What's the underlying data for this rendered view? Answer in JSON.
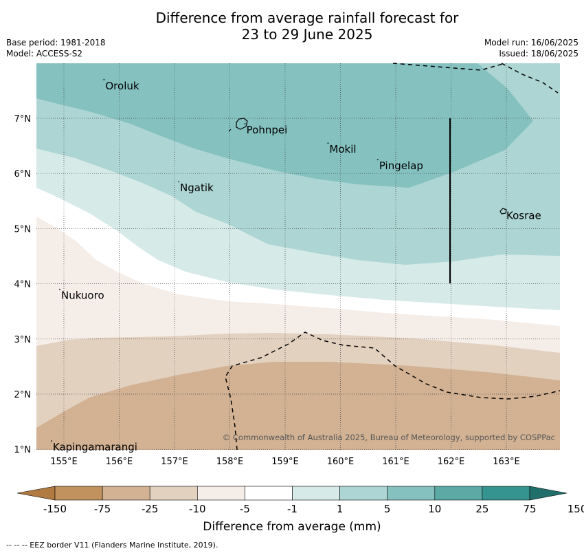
{
  "title_line1": "Difference from average rainfall forecast for",
  "title_line2": "23 to 29 June 2025",
  "base_period": "Base period: 1981-2018",
  "model": "Model: ACCESS-S2",
  "model_run": "Model run: 16/06/2025",
  "issued": "Issued: 18/06/2025",
  "copyright": "© Commonwealth of Australia 2025, Bureau of Meteorology, supported by COSPPac",
  "axes": {
    "lon_ticks": [
      "155°E",
      "156°E",
      "157°E",
      "158°E",
      "159°E",
      "160°E",
      "161°E",
      "162°E",
      "163°E"
    ],
    "lat_ticks": [
      "7°N",
      "6°N",
      "5°N",
      "4°N",
      "3°N",
      "2°N",
      "1°N"
    ]
  },
  "places": [
    {
      "name": "Oroluk",
      "lon": 155.75,
      "lat": 7.65
    },
    {
      "name": "Pohnpei",
      "lon": 158.3,
      "lat": 6.85
    },
    {
      "name": "Mokil",
      "lon": 159.8,
      "lat": 6.5
    },
    {
      "name": "Pingelap",
      "lon": 160.7,
      "lat": 6.2
    },
    {
      "name": "Ngatik",
      "lon": 157.1,
      "lat": 5.8
    },
    {
      "name": "Kosrae",
      "lon": 163.0,
      "lat": 5.3
    },
    {
      "name": "Nukuoro",
      "lon": 154.95,
      "lat": 3.85
    },
    {
      "name": "Kapingamarangi",
      "lon": 154.8,
      "lat": 1.1
    }
  ],
  "colorbar": {
    "labels": [
      "-150",
      "-75",
      "-25",
      "-10",
      "-5",
      "-1",
      "1",
      "5",
      "10",
      "25",
      "75",
      "150"
    ],
    "colors": [
      "#b07a40",
      "#c1925e",
      "#d2b293",
      "#e3d1c0",
      "#f5ede7",
      "#ffffff",
      "#d6eae8",
      "#acd5d3",
      "#84c1bf",
      "#5ca9a6",
      "#35948f",
      "#216f6b"
    ],
    "title": "Difference from average (mm)"
  },
  "footnote": "--  --  -- EEZ border V11 (Flanders Marine Institute, 2019)."
}
